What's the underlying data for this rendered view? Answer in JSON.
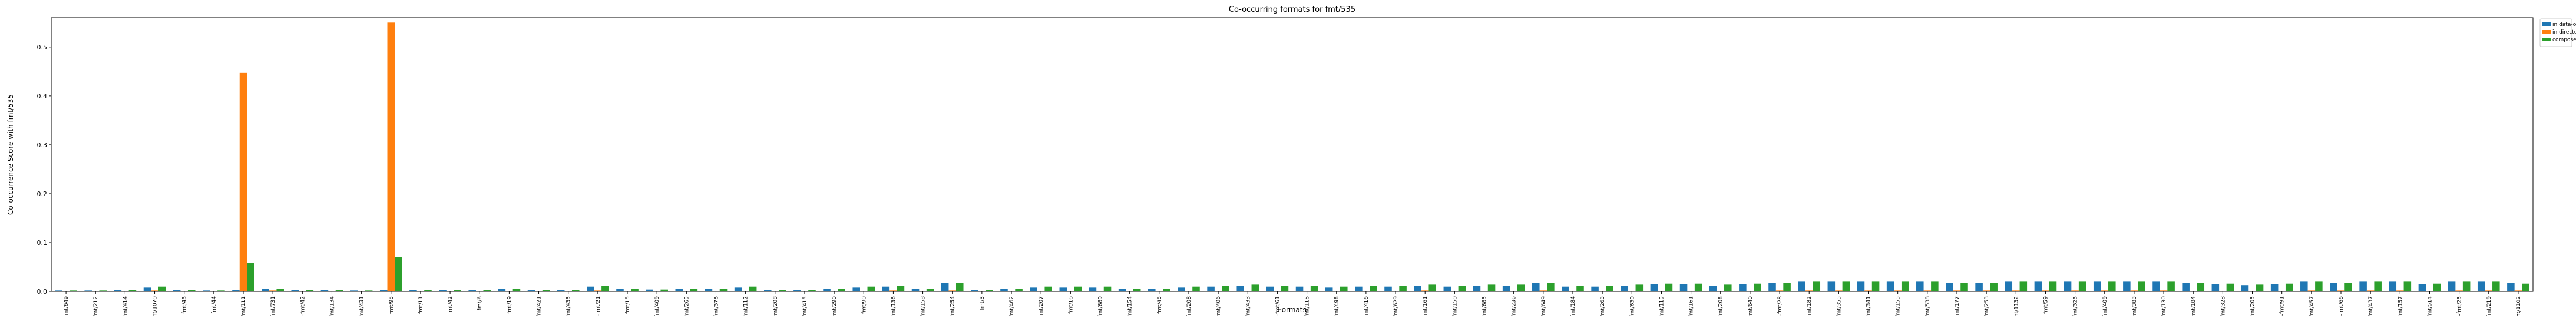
{
  "chart_data": {
    "type": "bar",
    "title": "Co-occurring formats for fmt/535",
    "xlabel": "Formats",
    "ylabel": "Co-occurrence Score with fmt/535",
    "ylim": [
      0,
      0.56
    ],
    "yticks": [
      "0.0",
      "0.1",
      "0.2",
      "0.3",
      "0.4",
      "0.5"
    ],
    "grid": false,
    "legend_position": "outside-top-right",
    "categories": [
      "fmt/649",
      "fmt/212",
      "x-fmt/414",
      "fmt/1070",
      "fmt/43",
      "fmt/44",
      "x-fmt/111",
      "fmt/731",
      "x-fmt/42",
      "fmt/134",
      "x-fmt/431",
      "fmt/95",
      "fmt/11",
      "fmt/42",
      "fmt/6",
      "fmt/19",
      "x-fmt/421",
      "x-fmt/435",
      "x-fmt/21",
      "fmt/15",
      "x-fmt/409",
      "fmt/265",
      "fmt/376",
      "fmt/112",
      "fmt/208",
      "x-fmt/415",
      "x-fmt/290",
      "fmt/90",
      "fmt/136",
      "x-fmt/158",
      "x-fmt/254",
      "fmt/3",
      "fmt/462",
      "x-fmt/207",
      "fmt/16",
      "fmt/689",
      "fmt/154",
      "fmt/45",
      "x-fmt/208",
      "x-fmt/406",
      "x-fmt/433",
      "x-fmt/61",
      "x-fmt/116",
      "fmt/498",
      "x-fmt/416",
      "fmt/629",
      "fmt/161",
      "x-fmt/150",
      "fmt/685",
      "fmt/236",
      "fmt/649",
      "x-fmt/184",
      "x-fmt/263",
      "fmt/630",
      "fmt/115",
      "fmt/161",
      "fmt/208",
      "fmt/640",
      "x-fmt/28",
      "x-fmt/182",
      "fmt/355",
      "x-fmt/341",
      "x-fmt/155",
      "fmt/538",
      "x-fmt/177",
      "fmt/253",
      "fmt/1132",
      "fmt/59",
      "x-fmt/323",
      "fmt/409",
      "fmt/383",
      "fmt/130",
      "x-fmt/184",
      "x-fmt/328",
      "x-fmt/205",
      "x-fmt/91",
      "x-fmt/457",
      "x-fmt/66",
      "fmt/437",
      "fmt/157",
      "fmt/514",
      "x-fmt/25",
      "x-fmt/219",
      "fmt/1102"
    ],
    "series": [
      {
        "name": "in data-objects",
        "color": "#1f77b4",
        "values": [
          0.002,
          0.002,
          0.003,
          0.008,
          0.003,
          0.002,
          0.003,
          0.005,
          0.003,
          0.003,
          0.002,
          0.003,
          0.003,
          0.003,
          0.003,
          0.005,
          0.003,
          0.003,
          0.01,
          0.005,
          0.004,
          0.005,
          0.006,
          0.008,
          0.003,
          0.003,
          0.005,
          0.008,
          0.01,
          0.005,
          0.018,
          0.003,
          0.005,
          0.008,
          0.008,
          0.008,
          0.005,
          0.005,
          0.008,
          0.01,
          0.012,
          0.01,
          0.01,
          0.008,
          0.01,
          0.01,
          0.012,
          0.01,
          0.012,
          0.012,
          0.018,
          0.01,
          0.01,
          0.012,
          0.015,
          0.015,
          0.012,
          0.015,
          0.018,
          0.02,
          0.02,
          0.02,
          0.02,
          0.02,
          0.018,
          0.018,
          0.02,
          0.02,
          0.02,
          0.02,
          0.02,
          0.02,
          0.018,
          0.015,
          0.013,
          0.015,
          0.02,
          0.018,
          0.02,
          0.02,
          0.015,
          0.02,
          0.02,
          0.018
        ]
      },
      {
        "name": "in directories",
        "color": "#ff7f0e",
        "values": [
          0.0,
          0.0,
          0.0,
          0.002,
          0.0,
          0.0,
          0.447,
          0.002,
          0.0,
          0.0,
          0.0,
          0.55,
          0.001,
          0.001,
          0.0,
          0.001,
          0.0,
          0.0,
          0.002,
          0.001,
          0.0,
          0.001,
          0.001,
          0.001,
          0.0,
          0.0,
          0.001,
          0.001,
          0.002,
          0.001,
          0.002,
          0.0,
          0.001,
          0.001,
          0.001,
          0.001,
          0.001,
          0.0,
          0.001,
          0.001,
          0.001,
          0.001,
          0.001,
          0.001,
          0.001,
          0.001,
          0.002,
          0.001,
          0.001,
          0.001,
          0.002,
          0.001,
          0.001,
          0.001,
          0.001,
          0.001,
          0.001,
          0.001,
          0.002,
          0.002,
          0.002,
          0.002,
          0.002,
          0.002,
          0.002,
          0.002,
          0.002,
          0.002,
          0.002,
          0.002,
          0.002,
          0.002,
          0.001,
          0.001,
          0.001,
          0.001,
          0.002,
          0.002,
          0.002,
          0.002,
          0.001,
          0.002,
          0.002,
          0.002
        ]
      },
      {
        "name": "composed",
        "color": "#2ca02c",
        "values": [
          0.002,
          0.002,
          0.003,
          0.01,
          0.003,
          0.002,
          0.058,
          0.005,
          0.003,
          0.003,
          0.002,
          0.07,
          0.003,
          0.003,
          0.003,
          0.005,
          0.003,
          0.003,
          0.012,
          0.005,
          0.004,
          0.005,
          0.006,
          0.01,
          0.003,
          0.003,
          0.005,
          0.01,
          0.012,
          0.005,
          0.018,
          0.003,
          0.005,
          0.01,
          0.01,
          0.01,
          0.005,
          0.005,
          0.01,
          0.012,
          0.014,
          0.012,
          0.012,
          0.01,
          0.012,
          0.012,
          0.014,
          0.012,
          0.014,
          0.014,
          0.018,
          0.012,
          0.012,
          0.014,
          0.016,
          0.016,
          0.014,
          0.016,
          0.018,
          0.02,
          0.02,
          0.02,
          0.02,
          0.02,
          0.018,
          0.018,
          0.02,
          0.02,
          0.02,
          0.02,
          0.02,
          0.02,
          0.018,
          0.016,
          0.014,
          0.016,
          0.02,
          0.018,
          0.02,
          0.02,
          0.016,
          0.02,
          0.02,
          0.016
        ]
      }
    ]
  }
}
